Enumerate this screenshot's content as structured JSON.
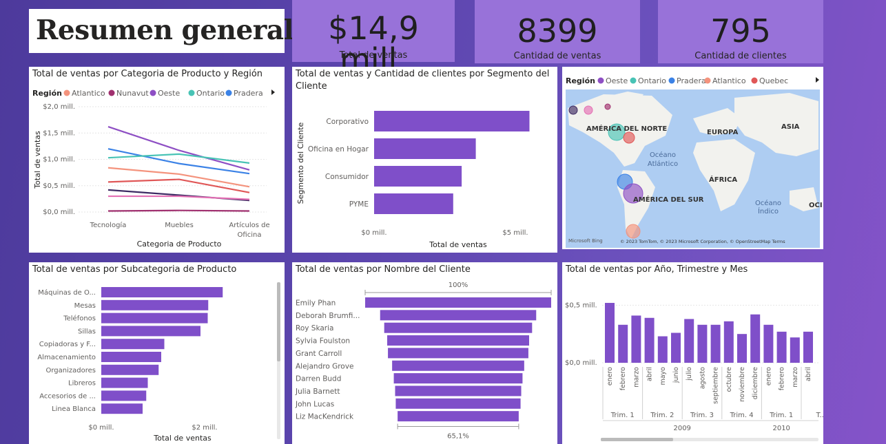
{
  "page_title": "Resumen general",
  "kpis": [
    {
      "value": "$14,9 mill.",
      "label": "Total de ventas"
    },
    {
      "value": "8399",
      "label": "Cantidad de ventas"
    },
    {
      "value": "795",
      "label": "Cantidad de clientes"
    }
  ],
  "chart_data": [
    {
      "id": "region_line",
      "type": "line",
      "title": "Total de ventas por Categoria de Producto y Región",
      "legend_title": "Región",
      "legend_visible": [
        "Atlantico",
        "Nunavut",
        "Oeste",
        "Ontario",
        "Pradera"
      ],
      "categories": [
        "Tecnología",
        "Muebles",
        "Artículos de Oficina"
      ],
      "xlabel": "Categoria de Producto",
      "ylabel": "Total de ventas",
      "yticks": [
        "$0,0 mill.",
        "$0,5 mill.",
        "$1,0 mill.",
        "$1,5 mill.",
        "$2,0 mill."
      ],
      "ylim": [
        0,
        2.0
      ],
      "grid": true,
      "series": [
        {
          "name": "Oeste",
          "color": "#8e4fc4",
          "values": [
            1.62,
            1.17,
            0.8
          ]
        },
        {
          "name": "Pradera",
          "color": "#3b82e6",
          "values": [
            1.2,
            0.92,
            0.73
          ]
        },
        {
          "name": "Ontario",
          "color": "#48c3b5",
          "values": [
            1.03,
            1.1,
            0.93
          ]
        },
        {
          "name": "Atlantico",
          "color": "#f4937d",
          "values": [
            0.84,
            0.72,
            0.48
          ]
        },
        {
          "color": "#e05757",
          "values": [
            0.57,
            0.62,
            0.37
          ]
        },
        {
          "color": "#3d2a63",
          "values": [
            0.42,
            0.32,
            0.22
          ]
        },
        {
          "color": "#e36fb3",
          "values": [
            0.3,
            0.3,
            0.24
          ]
        },
        {
          "name": "Nunavut",
          "color": "#a0306f",
          "values": [
            0.02,
            0.03,
            0.02
          ]
        }
      ]
    },
    {
      "id": "segment_bar",
      "type": "bar",
      "title": "Total de ventas y Cantidad de clientes por Segmento del Cliente",
      "categories": [
        "Corporativo",
        "Oficina en Hogar",
        "Consumidor",
        "PYME"
      ],
      "values": [
        5.5,
        3.6,
        3.1,
        2.8
      ],
      "xlabel": "Total de ventas",
      "ylabel": "Segmento del Cliente",
      "xticks": [
        "$0 mill.",
        "$5 mill."
      ],
      "xlim": [
        0,
        6.0
      ]
    },
    {
      "id": "region_map",
      "type": "scatter",
      "title": "Mapa de regiones",
      "legend_title": "Región",
      "legend_visible": [
        "Oeste",
        "Ontario",
        "Pradera",
        "Atlantico",
        "Quebec"
      ],
      "legend_colors": {
        "Oeste": "#8e4fc4",
        "Ontario": "#48c3b5",
        "Pradera": "#3b82e6",
        "Atlantico": "#f4937d",
        "Quebec": "#e05757"
      },
      "labels": [
        "AMÉRICA DEL NORTE",
        "EUROPA",
        "ASIA",
        "ÁFRICA",
        "AMÉRICA DEL SUR",
        "Océano Atlántico",
        "Océano Índico",
        "OCI"
      ],
      "attribution": "© 2023 TomTom, © 2023 Microsoft Corporation, © OpenStreetMap Terms",
      "logo": "Microsoft Bing"
    },
    {
      "id": "subcat_bar",
      "type": "bar",
      "title": "Total de ventas por Subcategoria de Producto",
      "categories": [
        "Máquinas de O...",
        "Mesas",
        "Teléfonos",
        "Sillas",
        "Copiadoras y F...",
        "Almacenamiento",
        "Organizadores",
        "Libreros",
        "Accesorios de ...",
        "Linea Blanca"
      ],
      "values": [
        2.35,
        2.07,
        2.06,
        1.92,
        1.22,
        1.16,
        1.11,
        0.9,
        0.87,
        0.8
      ],
      "xlabel": "Total de ventas",
      "xticks": [
        "$0 mill.",
        "$2 mill."
      ],
      "xlim": [
        0,
        3.0
      ]
    },
    {
      "id": "customer_funnel",
      "type": "bar",
      "title": "Total de ventas por Nombre del Cliente",
      "categories": [
        "Emily Phan",
        "Deborah Brumfi...",
        "Roy Skaria",
        "Sylvia Foulston",
        "Grant Carroll",
        "Alejandro Grove",
        "Darren Budd",
        "Julia Barnett",
        "John Lucas",
        "Liz MacKendrick"
      ],
      "values": [
        100,
        83.9,
        79.5,
        76.3,
        75.5,
        71.0,
        69.2,
        67.8,
        67.1,
        65.1
      ],
      "top_label": "100%",
      "bottom_label": "65,1%"
    },
    {
      "id": "monthly_bar",
      "type": "bar",
      "title": "Total de ventas por Año, Trimestre y Mes",
      "categories": [
        "enero",
        "febrero",
        "marzo",
        "abril",
        "mayo",
        "junio",
        "julio",
        "agosto",
        "septiembre",
        "octubre",
        "noviembre",
        "diciembre",
        "enero",
        "febrero",
        "marzo",
        "abril"
      ],
      "values": [
        0.52,
        0.33,
        0.41,
        0.39,
        0.23,
        0.26,
        0.38,
        0.33,
        0.33,
        0.36,
        0.25,
        0.42,
        0.33,
        0.27,
        0.22,
        0.27
      ],
      "quarters": [
        "Trim. 1",
        "Trim. 2",
        "Trim. 3",
        "Trim. 4",
        "Trim. 1",
        "T..."
      ],
      "years": [
        "2009",
        "2010"
      ],
      "yticks": [
        "$0,0 mill.",
        "$0,5 mill."
      ],
      "ylim": [
        0,
        0.55
      ]
    }
  ]
}
